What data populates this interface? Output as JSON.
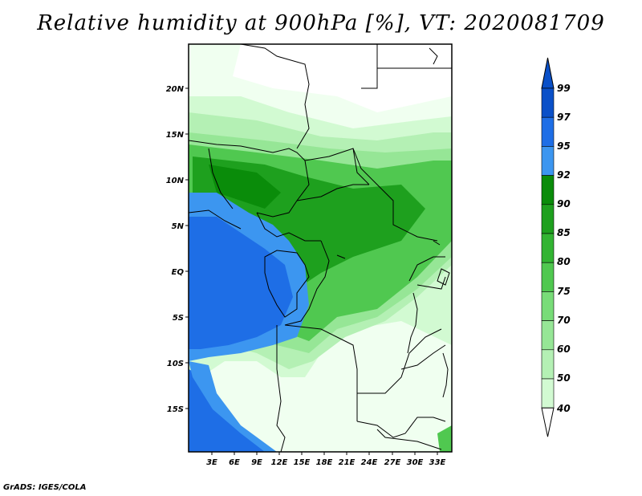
{
  "title": "Relative humidity at 900hPa [%], VT: 2020081709",
  "credit": "GrADS: IGES/COLA",
  "map": {
    "lat_labels": [
      "20N",
      "15N",
      "10N",
      "5N",
      "EQ",
      "5S",
      "10S",
      "15S"
    ],
    "lon_labels": [
      "3E",
      "6E",
      "9E",
      "12E",
      "15E",
      "18E",
      "21E",
      "24E",
      "27E",
      "30E",
      "33E"
    ],
    "lon_range_deg": [
      0,
      35
    ],
    "lat_range_deg": [
      -20,
      24
    ]
  },
  "colorbar": {
    "labels": [
      "99",
      "97",
      "95",
      "92",
      "90",
      "85",
      "80",
      "75",
      "70",
      "60",
      "50",
      "40"
    ],
    "colors": [
      "#0a50c8",
      "#1e6ee6",
      "#3c96f0",
      "#0a8c0a",
      "#1ea01e",
      "#32b432",
      "#50c850",
      "#78dc78",
      "#96e696",
      "#b4f0b4",
      "#d2fad2",
      "#f0fff0"
    ]
  }
}
